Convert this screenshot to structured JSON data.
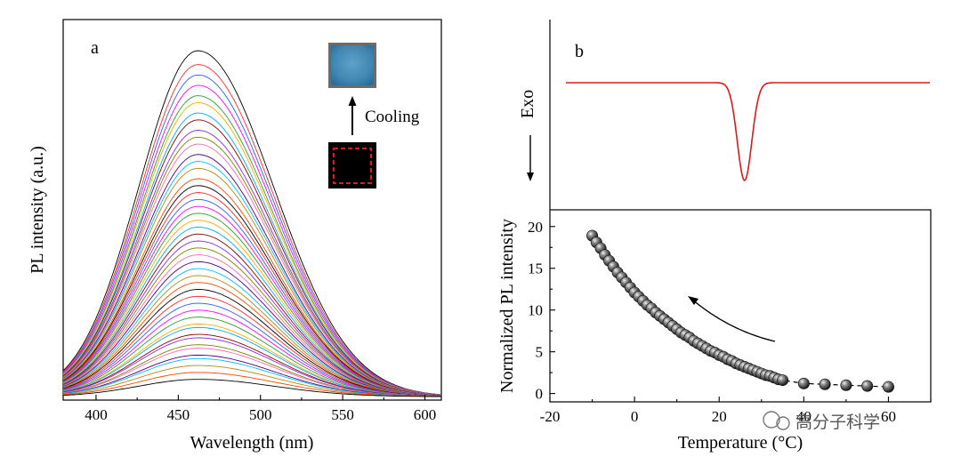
{
  "chart_data": [
    {
      "panel": "a",
      "type": "line",
      "xlabel": "Wavelength (nm)",
      "ylabel": "PL intensity (a.u.)",
      "xlim": [
        380,
        610
      ],
      "xticks": [
        400,
        450,
        500,
        550,
        600
      ],
      "ylim": [
        0,
        1.1
      ],
      "peak_wavelength_nm": 462,
      "series_count": 46,
      "peak_intensities": [
        1.0,
        0.96,
        0.93,
        0.9,
        0.87,
        0.85,
        0.82,
        0.8,
        0.77,
        0.75,
        0.73,
        0.7,
        0.68,
        0.66,
        0.63,
        0.61,
        0.59,
        0.57,
        0.55,
        0.53,
        0.51,
        0.49,
        0.47,
        0.45,
        0.43,
        0.41,
        0.39,
        0.37,
        0.35,
        0.33,
        0.31,
        0.29,
        0.27,
        0.25,
        0.23,
        0.21,
        0.2,
        0.18,
        0.17,
        0.15,
        0.14,
        0.12,
        0.11,
        0.09,
        0.07,
        0.05
      ],
      "colors": [
        "#000000",
        "#ff2a2a",
        "#2a5fff",
        "#ff00ff",
        "#2aa02a",
        "#ffaa00",
        "#00aaff",
        "#8b0000",
        "#8a2be2",
        "#808000",
        "#ff69b4",
        "#4b0082",
        "#00bfff",
        "#b8860b",
        "#ff4500"
      ],
      "annotation": "Cooling"
    },
    {
      "panel": "b",
      "type": "line+scatter",
      "top": {
        "ylabel": "Exo",
        "baseline": 0,
        "dip_center_C": 26,
        "dip_depth": 1.0,
        "dip_width_C": 1.7
      },
      "bottom": {
        "type": "scatter",
        "xlabel": "Temperature (°C)",
        "ylabel": "Normalized PL intensity",
        "xlim": [
          -20,
          70
        ],
        "ylim": [
          -1,
          22
        ],
        "xticks": [
          -20,
          0,
          20,
          40,
          60
        ],
        "yticks": [
          0,
          5,
          10,
          15,
          20
        ],
        "points": {
          "x": [
            -10,
            -9,
            -8,
            -7,
            -6,
            -5,
            -4,
            -3,
            -2,
            -1,
            0,
            1,
            2,
            3,
            4,
            5,
            6,
            7,
            8,
            9,
            10,
            11,
            12,
            13,
            14,
            15,
            16,
            17,
            18,
            19,
            20,
            21,
            22,
            23,
            24,
            25,
            26,
            27,
            28,
            29,
            30,
            31,
            32,
            33,
            34,
            35,
            40,
            45,
            50,
            55,
            60
          ],
          "y": [
            18.9,
            18.1,
            17.4,
            16.6,
            15.9,
            15.2,
            14.5,
            13.9,
            13.3,
            12.7,
            12.1,
            11.6,
            11.1,
            10.6,
            10.2,
            9.7,
            9.3,
            8.9,
            8.5,
            8.1,
            7.7,
            7.3,
            7.0,
            6.7,
            6.3,
            6.0,
            5.7,
            5.4,
            5.1,
            4.9,
            4.6,
            4.4,
            4.1,
            3.9,
            3.6,
            3.4,
            3.2,
            3.0,
            2.8,
            2.6,
            2.4,
            2.2,
            2.1,
            1.9,
            1.7,
            1.6,
            1.2,
            1.1,
            1.0,
            0.9,
            0.8
          ]
        },
        "arrow_direction": "toward lower temperature"
      }
    }
  ],
  "labels": {
    "panel_a": "a",
    "panel_b": "b",
    "watermark": "高分子科学"
  }
}
